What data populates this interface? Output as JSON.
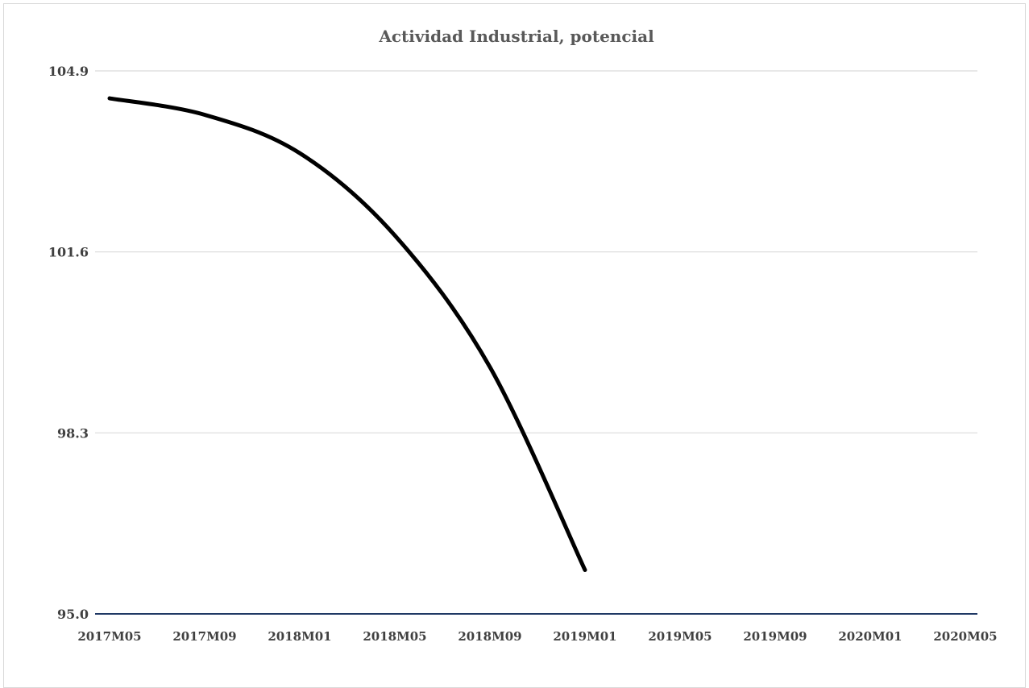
{
  "chart_data": {
    "type": "line",
    "title": "Actividad Industrial, potencial",
    "xlabel": "",
    "ylabel": "",
    "ylim": [
      95.0,
      104.9
    ],
    "yticks": [
      "104.9",
      "101.6",
      "98.3",
      "95.0"
    ],
    "xticks": [
      "2017M05",
      "2017M09",
      "2018M01",
      "2018M05",
      "2018M09",
      "2019M01",
      "2019M05",
      "2019M09",
      "2020M01",
      "2020M05"
    ],
    "grid": true,
    "legend": "none",
    "colors": {
      "line": "#000000",
      "gridline": "#d9d9d9",
      "baseline": "#1f3864"
    },
    "series": [
      {
        "values": [
          104.4,
          104.1,
          103.4,
          101.9,
          99.5,
          95.8
        ],
        "x_index": [
          0,
          2,
          4,
          6,
          8,
          10
        ]
      }
    ]
  }
}
